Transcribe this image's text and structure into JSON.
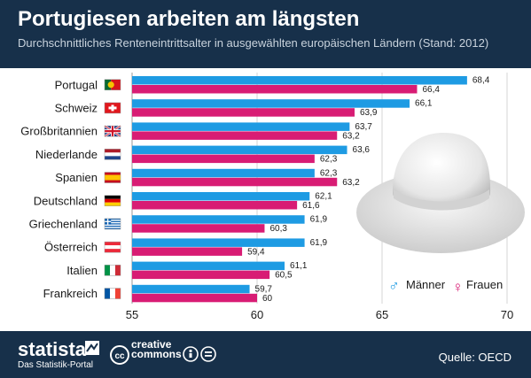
{
  "header": {
    "title": "Portugiesen arbeiten am längsten",
    "subtitle": "Durchschnittliches Renteneintrittsalter in ausgewählten europäischen Ländern (Stand: 2012)"
  },
  "footer": {
    "brand": "statista",
    "brand_sub": "Das Statistik-Portal",
    "cc_line1": "creative",
    "cc_line2": "commons",
    "source": "Quelle: OECD"
  },
  "colors": {
    "men": "#1e9be3",
    "women": "#d81c74",
    "header_bg": "#17304a"
  },
  "chart_data": {
    "type": "bar",
    "orientation": "horizontal",
    "categories": [
      "Portugal",
      "Schweiz",
      "Großbritannien",
      "Niederlande",
      "Spanien",
      "Deutschland",
      "Griechenland",
      "Österreich",
      "Italien",
      "Frankreich"
    ],
    "flag_icons": [
      "flag-portugal-icon",
      "flag-switzerland-icon",
      "flag-uk-icon",
      "flag-netherlands-icon",
      "flag-spain-icon",
      "flag-germany-icon",
      "flag-greece-icon",
      "flag-austria-icon",
      "flag-italy-icon",
      "flag-france-icon"
    ],
    "series": [
      {
        "name": "Männer",
        "symbol": "♂",
        "values": [
          68.4,
          66.1,
          63.7,
          63.6,
          62.3,
          62.1,
          61.9,
          61.9,
          61.1,
          59.7
        ],
        "labels": [
          "68,4",
          "66,1",
          "63,7",
          "63,6",
          "62,3",
          "62,1",
          "61,9",
          "61,9",
          "61,1",
          "59,7"
        ]
      },
      {
        "name": "Frauen",
        "symbol": "♀",
        "values": [
          66.4,
          63.9,
          63.2,
          62.3,
          63.2,
          61.6,
          60.3,
          59.4,
          60.5,
          60
        ],
        "labels": [
          "66,4",
          "63,9",
          "63,2",
          "62,3",
          "63,2",
          "61,6",
          "60,3",
          "59,4",
          "60,5",
          "60"
        ]
      }
    ],
    "xlim": [
      55,
      70
    ],
    "xticks": [
      55,
      60,
      65,
      70
    ],
    "xtick_labels": [
      "55",
      "60",
      "65",
      "70"
    ],
    "grid": true,
    "legend_position": "bottom-right"
  }
}
